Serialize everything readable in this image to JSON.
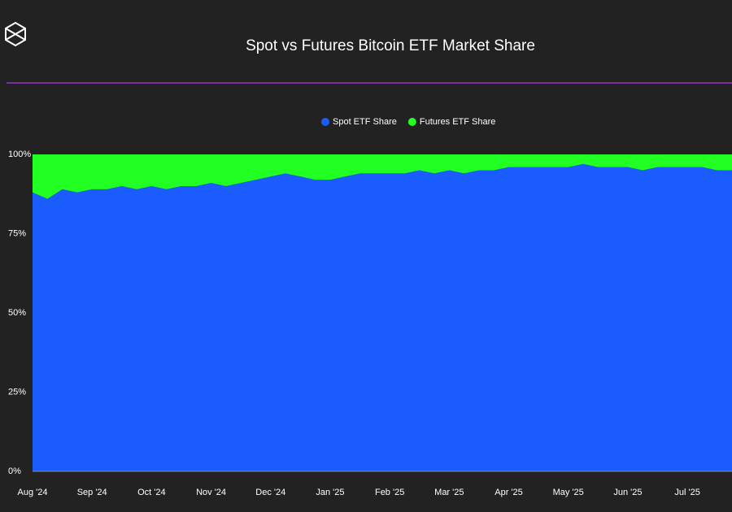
{
  "chart_data": {
    "type": "stacked_area",
    "title": "Spot vs Futures Bitcoin ETF Market Share",
    "categories": [
      "Aug '24",
      null,
      null,
      null,
      "Sep '24",
      null,
      null,
      null,
      "Oct '24",
      null,
      null,
      null,
      "Nov '24",
      null,
      null,
      null,
      "Dec '24",
      null,
      null,
      null,
      "Jan '25",
      null,
      null,
      null,
      "Feb '25",
      null,
      null,
      null,
      "Mar '25",
      null,
      null,
      null,
      "Apr '25",
      null,
      null,
      null,
      "May '25",
      null,
      null,
      null,
      "Jun '25",
      null,
      null,
      null,
      "Jul '25",
      null,
      null,
      null
    ],
    "series": [
      {
        "name": "Spot ETF Share",
        "color": "#1a5cff",
        "values": [
          88,
          86,
          89,
          88,
          89,
          89,
          90,
          89,
          90,
          89,
          90,
          90,
          91,
          90,
          91,
          92,
          93,
          94,
          93,
          92,
          92,
          93,
          94,
          94,
          94,
          94,
          95,
          94,
          95,
          94,
          95,
          95,
          96,
          96,
          96,
          96,
          96,
          97,
          96,
          96,
          96,
          95,
          96,
          96,
          96,
          96,
          95,
          95
        ]
      },
      {
        "name": "Futures ETF Share",
        "color": "#22ff22",
        "values": [
          12,
          14,
          11,
          12,
          11,
          11,
          10,
          11,
          10,
          11,
          10,
          10,
          9,
          10,
          9,
          8,
          7,
          6,
          7,
          8,
          8,
          7,
          6,
          6,
          6,
          6,
          5,
          6,
          5,
          6,
          5,
          5,
          4,
          4,
          4,
          4,
          4,
          3,
          4,
          4,
          4,
          5,
          4,
          4,
          4,
          4,
          5,
          5
        ]
      }
    ],
    "ylim": [
      0,
      100
    ],
    "yticks": [
      {
        "value": 0,
        "label": "0%"
      },
      {
        "value": 25,
        "label": "25%"
      },
      {
        "value": 50,
        "label": "50%"
      },
      {
        "value": 75,
        "label": "75%"
      },
      {
        "value": 100,
        "label": "100%"
      }
    ]
  }
}
